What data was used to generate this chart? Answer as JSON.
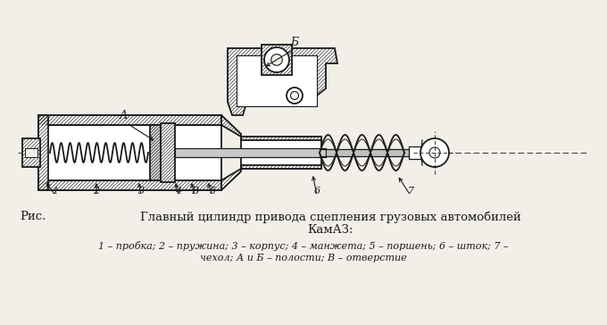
{
  "bg_color": "#f2efe8",
  "line_color": "#1a1a1a",
  "fig_w": 6.8,
  "fig_h": 3.64,
  "dpi": 100,
  "title_prefix": "Рис.",
  "title_line1": "Главный цилиндр привода сцепления грузовых автомобилей",
  "title_line2": "КамАЗ:",
  "caption_line1": "1 – пробка; 2 – пружина; 3 – корпус; 4 – манжета; 5 – поршень; 6 – шток; 7 –",
  "caption_line2": "чехол; А и Б – полости; В – отверстие"
}
